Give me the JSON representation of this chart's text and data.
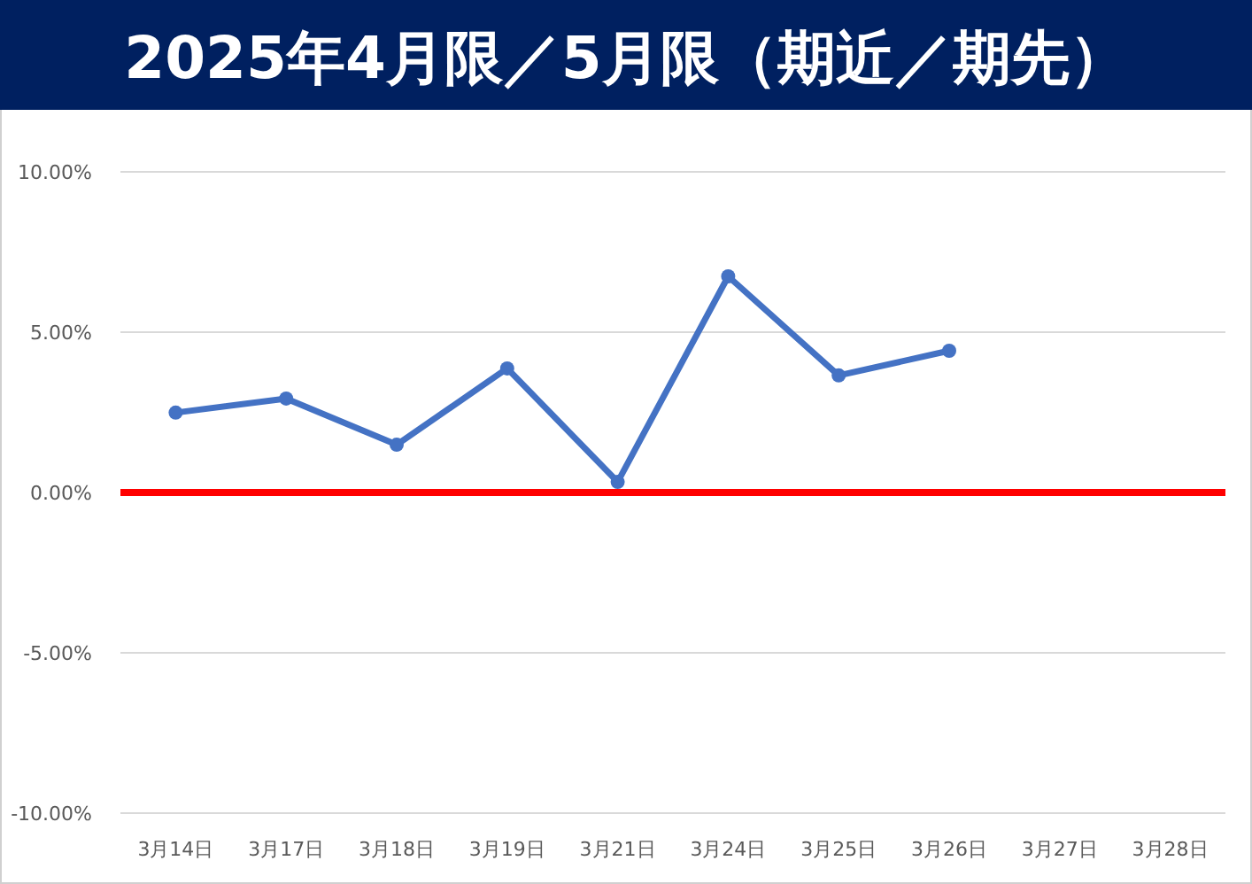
{
  "chart_data": {
    "type": "line",
    "title": "2025年4月限／5月限（期近／期先）",
    "categories": [
      "3月14日",
      "3月17日",
      "3月18日",
      "3月19日",
      "3月21日",
      "3月24日",
      "3月25日",
      "3月26日",
      "3月27日",
      "3月28日"
    ],
    "series": [
      {
        "color": "#4472c4",
        "values": [
          2.49,
          2.93,
          1.49,
          3.87,
          0.33,
          6.74,
          3.65,
          4.42,
          null,
          null
        ]
      }
    ],
    "ylim": [
      -10,
      10
    ],
    "yticks": [
      {
        "value": -10,
        "label": "-10.00%"
      },
      {
        "value": -5,
        "label": "-5.00%"
      },
      {
        "value": 0,
        "label": "0.00%"
      },
      {
        "value": 5,
        "label": "5.00%"
      },
      {
        "value": 10,
        "label": "10.00%"
      }
    ],
    "ref_lines": [
      {
        "axis": "y",
        "value": 0,
        "color": "#ff0000"
      }
    ],
    "grid": "y",
    "marker": "circle",
    "line_style": "solid"
  }
}
